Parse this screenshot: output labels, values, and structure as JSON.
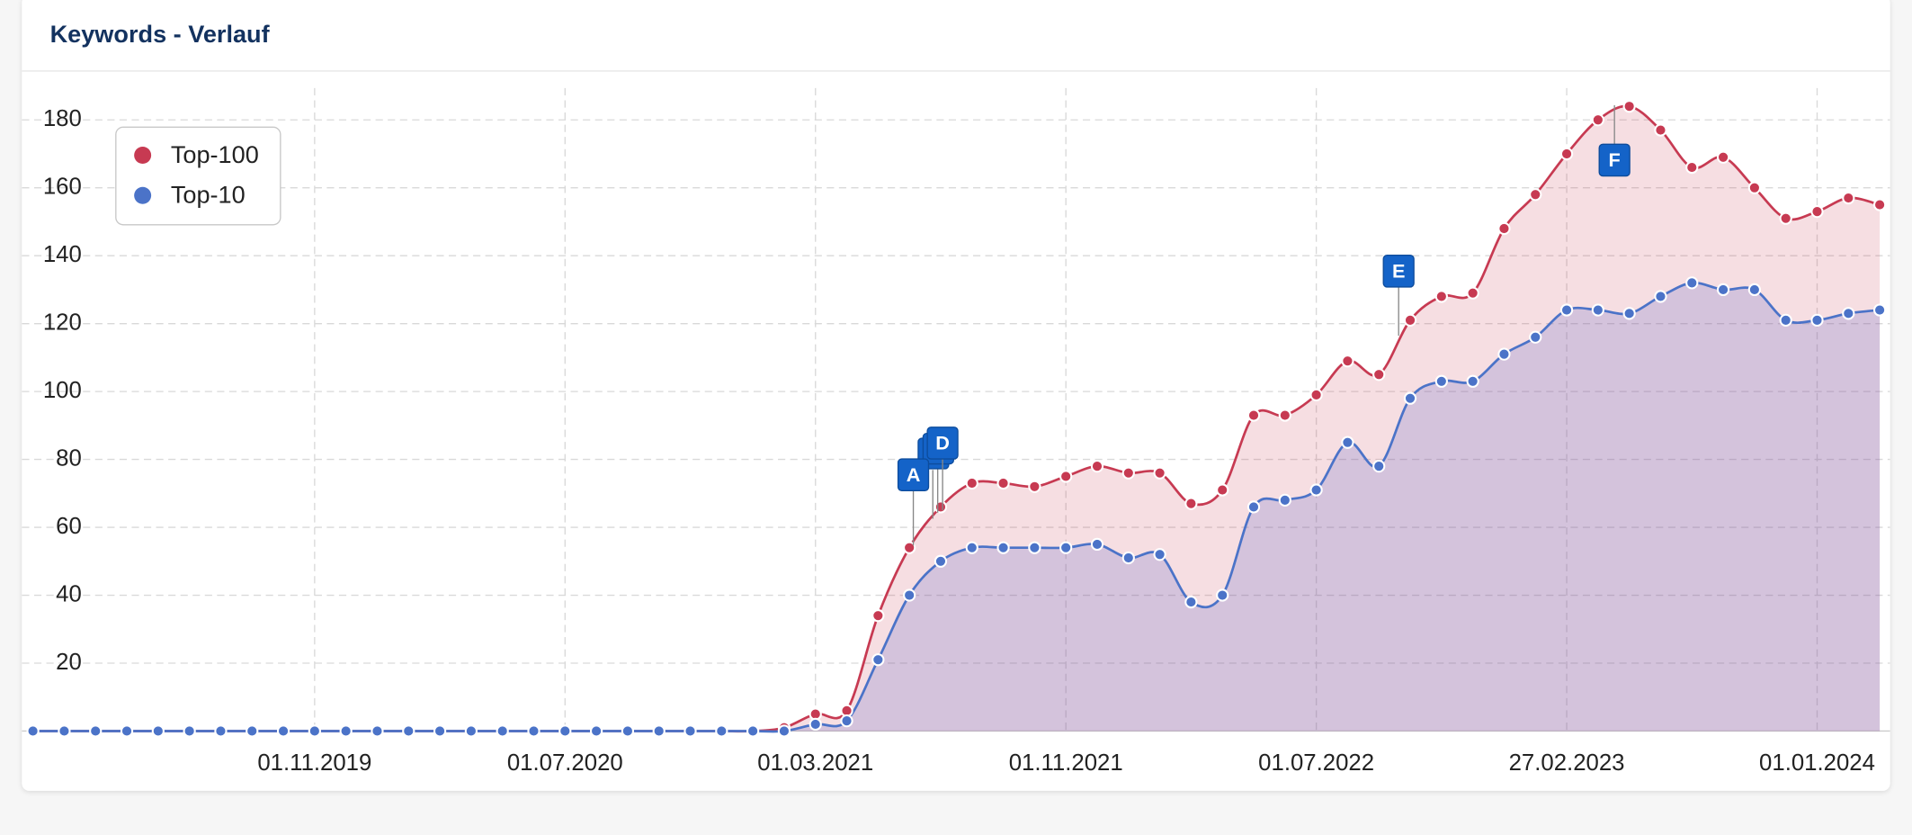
{
  "chart_data": {
    "type": "area-line",
    "title": "Keywords - Verlauf",
    "categories": [
      null,
      null,
      null,
      null,
      null,
      null,
      null,
      null,
      null,
      "01.11.2019",
      null,
      null,
      null,
      null,
      null,
      null,
      null,
      "01.07.2020",
      null,
      null,
      null,
      null,
      null,
      null,
      null,
      "01.03.2021",
      null,
      null,
      null,
      null,
      null,
      null,
      null,
      "01.11.2021",
      null,
      null,
      null,
      null,
      null,
      null,
      null,
      "01.07.2022",
      null,
      null,
      null,
      null,
      null,
      null,
      null,
      "27.02.2023",
      null,
      null,
      null,
      null,
      null,
      null,
      null,
      "01.01.2024",
      null,
      null
    ],
    "series": [
      {
        "name": "Top-100",
        "color": "#c73a52",
        "values": [
          0,
          0,
          0,
          0,
          0,
          0,
          0,
          0,
          0,
          0,
          0,
          0,
          0,
          0,
          0,
          0,
          0,
          0,
          0,
          0,
          0,
          0,
          0,
          0,
          1,
          5,
          6,
          34,
          54,
          66,
          73,
          73,
          72,
          75,
          78,
          76,
          76,
          67,
          71,
          93,
          93,
          99,
          109,
          105,
          121,
          128,
          129,
          148,
          158,
          170,
          180,
          184,
          177,
          166,
          169,
          160,
          151,
          153,
          157,
          155
        ]
      },
      {
        "name": "Top-10",
        "color": "#4b73c8",
        "values": [
          0,
          0,
          0,
          0,
          0,
          0,
          0,
          0,
          0,
          0,
          0,
          0,
          0,
          0,
          0,
          0,
          0,
          0,
          0,
          0,
          0,
          0,
          0,
          0,
          0,
          2,
          3,
          21,
          40,
          50,
          54,
          54,
          54,
          54,
          55,
          51,
          52,
          38,
          40,
          66,
          68,
          71,
          85,
          78,
          98,
          103,
          103,
          111,
          116,
          124,
          124,
          123,
          128,
          132,
          130,
          130,
          121,
          121,
          123,
          124
        ]
      }
    ],
    "ylim": [
      0,
      190
    ],
    "yticks": [
      20,
      40,
      60,
      80,
      100,
      120,
      140,
      160,
      180
    ],
    "grid": true,
    "legend": "top-left",
    "annotations": [
      "A",
      "D",
      "E",
      "F"
    ]
  }
}
